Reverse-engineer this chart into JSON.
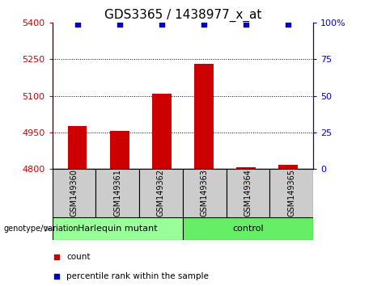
{
  "title": "GDS3365 / 1438977_x_at",
  "samples": [
    "GSM149360",
    "GSM149361",
    "GSM149362",
    "GSM149363",
    "GSM149364",
    "GSM149365"
  ],
  "bar_values": [
    4975,
    4955,
    5108,
    5230,
    4805,
    4815
  ],
  "percentile_values": [
    99,
    99,
    99,
    99,
    99,
    99
  ],
  "ylim_left": [
    4800,
    5400
  ],
  "ylim_right": [
    0,
    100
  ],
  "yticks_left": [
    4800,
    4950,
    5100,
    5250,
    5400
  ],
  "yticks_right": [
    0,
    25,
    50,
    75,
    100
  ],
  "ytick_labels_right": [
    "0",
    "25",
    "50",
    "75",
    "100%"
  ],
  "bar_color": "#cc0000",
  "percentile_color": "#0000cc",
  "bar_width": 0.45,
  "groups": [
    {
      "label": "Harlequin mutant",
      "indices": [
        0,
        1,
        2
      ],
      "color": "#99ff99"
    },
    {
      "label": "control",
      "indices": [
        3,
        4,
        5
      ],
      "color": "#66ee66"
    }
  ],
  "group_row_color": "#cccccc",
  "genotype_label": "genotype/variation",
  "legend_count_label": "count",
  "legend_percentile_label": "percentile rank within the sample",
  "grid_color": "#000000",
  "title_fontsize": 11,
  "tick_fontsize": 8,
  "sample_fontsize": 7,
  "axis_label_color_left": "#cc0000",
  "axis_label_color_right": "#0000cc"
}
